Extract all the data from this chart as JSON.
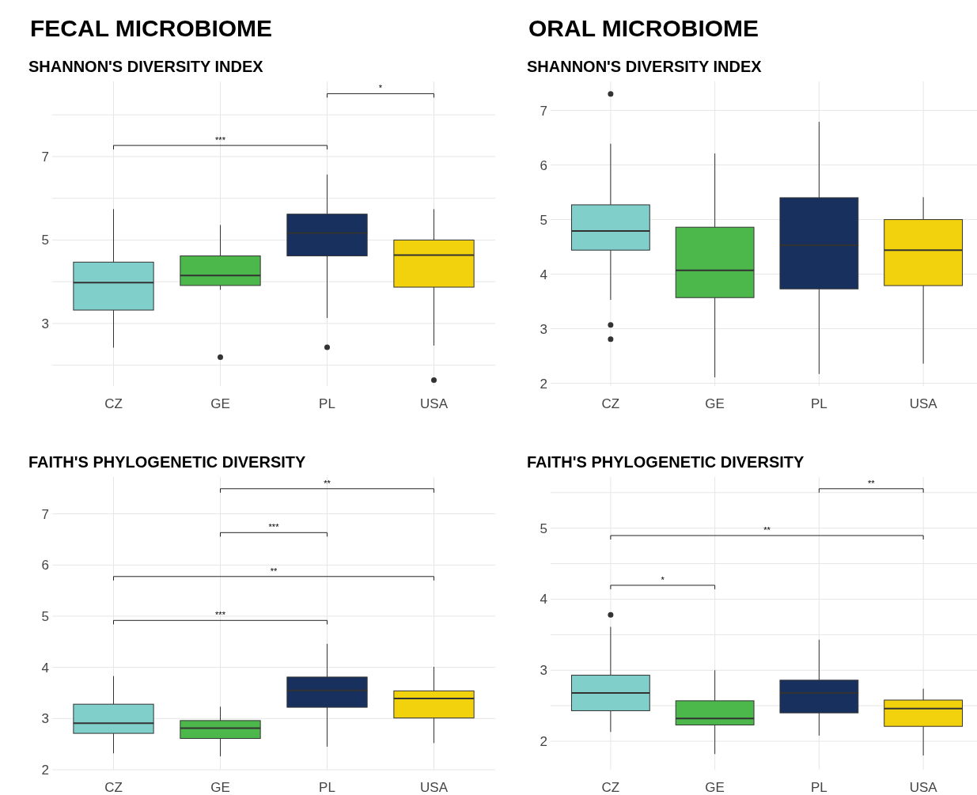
{
  "chart_data": [
    {
      "type": "box",
      "title": "FECAL MICROBIOME",
      "subtitle": "SHANNON'S DIVERSITY INDEX",
      "categories": [
        "CZ",
        "GE",
        "PL",
        "USA"
      ],
      "colors": [
        "#80cfcb",
        "#4cb84c",
        "#17305e",
        "#f2d20c"
      ],
      "grid": true,
      "ylim": [
        1.5,
        8.8
      ],
      "yticks": [
        {
          "value": 2,
          "label": null
        },
        3,
        {
          "value": 4,
          "label": null
        },
        5,
        {
          "value": 6,
          "label": null
        },
        7,
        {
          "value": 8,
          "label": null
        }
      ],
      "boxes": [
        {
          "low": 2.42,
          "q1": 3.32,
          "median": 3.98,
          "q3": 4.47,
          "high": 5.74
        },
        {
          "low": 3.81,
          "q1": 3.91,
          "median": 4.15,
          "q3": 4.62,
          "high": 5.36,
          "outliers": [
            2.19
          ]
        },
        {
          "low": 3.13,
          "q1": 4.62,
          "median": 5.17,
          "q3": 5.62,
          "high": 6.57,
          "outliers": [
            2.43
          ]
        },
        {
          "low": 2.47,
          "q1": 3.87,
          "median": 4.64,
          "q3": 5.0,
          "high": 5.74,
          "outliers": [
            1.64
          ]
        }
      ],
      "annotations": [
        "***",
        "*"
      ]
    },
    {
      "type": "box",
      "title": "ORAL MICROBIOME",
      "subtitle": "SHANNON'S DIVERSITY INDEX",
      "categories": [
        "CZ",
        "GE",
        "PL",
        "USA"
      ],
      "colors": [
        "#80cfcb",
        "#4cb84c",
        "#17305e",
        "#f2d20c"
      ],
      "grid": true,
      "ylim": [
        1.95,
        7.53
      ],
      "yticks": [
        2,
        3,
        4,
        5,
        6,
        7
      ],
      "boxes": [
        {
          "low": 3.53,
          "q1": 4.44,
          "median": 4.79,
          "q3": 5.27,
          "high": 6.39,
          "outliers": [
            7.3,
            3.07,
            2.81
          ]
        },
        {
          "low": 2.11,
          "q1": 3.57,
          "median": 4.07,
          "q3": 4.86,
          "high": 6.21
        },
        {
          "low": 2.17,
          "q1": 3.73,
          "median": 4.53,
          "q3": 5.4,
          "high": 6.79
        },
        {
          "low": 2.36,
          "q1": 3.79,
          "median": 4.44,
          "q3": 5.0,
          "high": 5.41
        }
      ]
    },
    {
      "type": "box",
      "subtitle": "FAITH'S PHYLOGENETIC DIVERSITY",
      "categories": [
        "CZ",
        "GE",
        "PL",
        "USA"
      ],
      "colors": [
        "#80cfcb",
        "#4cb84c",
        "#17305e",
        "#f2d20c"
      ],
      "grid": true,
      "ylim": [
        2,
        7.72
      ],
      "yticks": [
        2,
        3,
        4,
        5,
        6,
        7
      ],
      "boxes": [
        {
          "low": 2.32,
          "q1": 2.71,
          "median": 2.91,
          "q3": 3.28,
          "high": 3.83
        },
        {
          "low": 2.26,
          "q1": 2.61,
          "median": 2.81,
          "q3": 2.96,
          "high": 3.23
        },
        {
          "low": 2.45,
          "q1": 3.22,
          "median": 3.55,
          "q3": 3.81,
          "high": 4.46
        },
        {
          "low": 2.52,
          "q1": 3.01,
          "median": 3.39,
          "q3": 3.54,
          "high": 4.01
        }
      ],
      "annotations": [
        "**",
        "***",
        "**",
        "***"
      ]
    },
    {
      "type": "box",
      "subtitle": "FAITH'S PHYLOGENETIC DIVERSITY",
      "categories": [
        "CZ",
        "GE",
        "PL",
        "USA"
      ],
      "colors": [
        "#80cfcb",
        "#4cb84c",
        "#17305e",
        "#f2d20c"
      ],
      "grid": true,
      "ylim": [
        1.6,
        5.72
      ],
      "yticks": [
        2,
        {
          "value": 2.5,
          "label": null
        },
        3,
        {
          "value": 3.5,
          "label": null
        },
        4,
        {
          "value": 4.5,
          "label": null
        },
        5,
        {
          "value": 5.5,
          "label": null
        }
      ],
      "boxes": [
        {
          "low": 2.13,
          "q1": 2.43,
          "median": 2.68,
          "q3": 2.93,
          "high": 3.61,
          "outliers": [
            3.78
          ]
        },
        {
          "low": 1.82,
          "q1": 2.23,
          "median": 2.32,
          "q3": 2.57,
          "high": 3.0
        },
        {
          "low": 2.08,
          "q1": 2.4,
          "median": 2.68,
          "q3": 2.86,
          "high": 3.43
        },
        {
          "low": 1.8,
          "q1": 2.21,
          "median": 2.46,
          "q3": 2.58,
          "high": 2.74
        }
      ],
      "annotations": [
        "**",
        "**",
        "*"
      ]
    }
  ]
}
